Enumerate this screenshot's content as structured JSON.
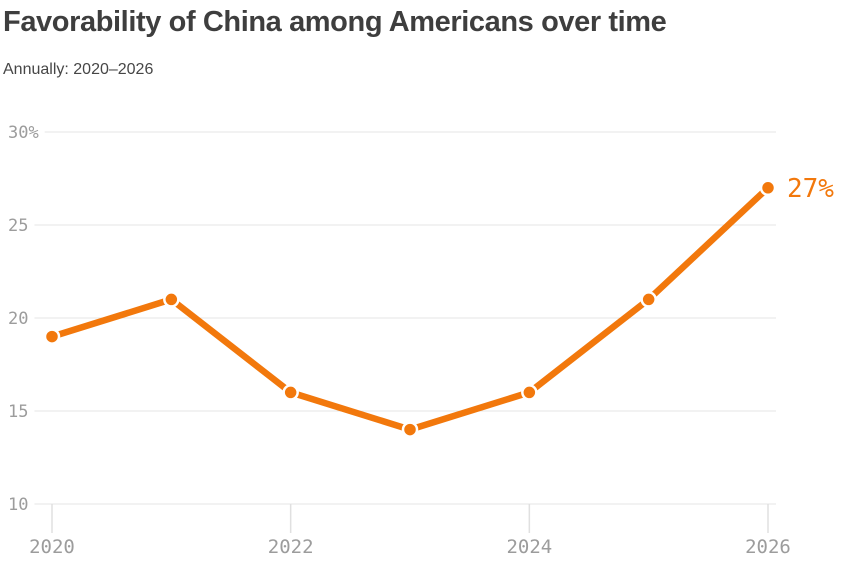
{
  "chart_data": {
    "type": "line",
    "title": "Favorability of China among Americans over time",
    "subtitle": "Annually: 2020–2026",
    "xlabel": "",
    "ylabel": "",
    "x": [
      2020,
      2021,
      2022,
      2023,
      2024,
      2025,
      2026
    ],
    "series": [
      {
        "name": "Favorability of China",
        "values": [
          19,
          21,
          16,
          14,
          16,
          21,
          27
        ]
      }
    ],
    "xlim": [
      2020,
      2026
    ],
    "ylim": [
      10,
      30
    ],
    "grid": "horizontal",
    "legend_position": "none",
    "yticks": [
      {
        "value": 30,
        "label": "30%"
      },
      {
        "value": 25,
        "label": "25"
      },
      {
        "value": 20,
        "label": "20"
      },
      {
        "value": 15,
        "label": "15"
      },
      {
        "value": 10,
        "label": "10"
      }
    ],
    "xticks": [
      {
        "value": 2020,
        "label": "2020"
      },
      {
        "value": 2022,
        "label": "2022"
      },
      {
        "value": 2024,
        "label": "2024"
      },
      {
        "value": 2026,
        "label": "2026"
      }
    ],
    "end_label": "27%",
    "colors": {
      "line": "#f2780c",
      "point": "#f2780c",
      "point_halo": "#ffffff",
      "end_label": "#f2780c",
      "grid": "#e4e4e4",
      "tick": "#e0e0e0",
      "axis_text": "#9c9c9c",
      "title_text": "#3e3e3e",
      "subtitle_text": "#464646",
      "background": "#ffffff"
    }
  }
}
